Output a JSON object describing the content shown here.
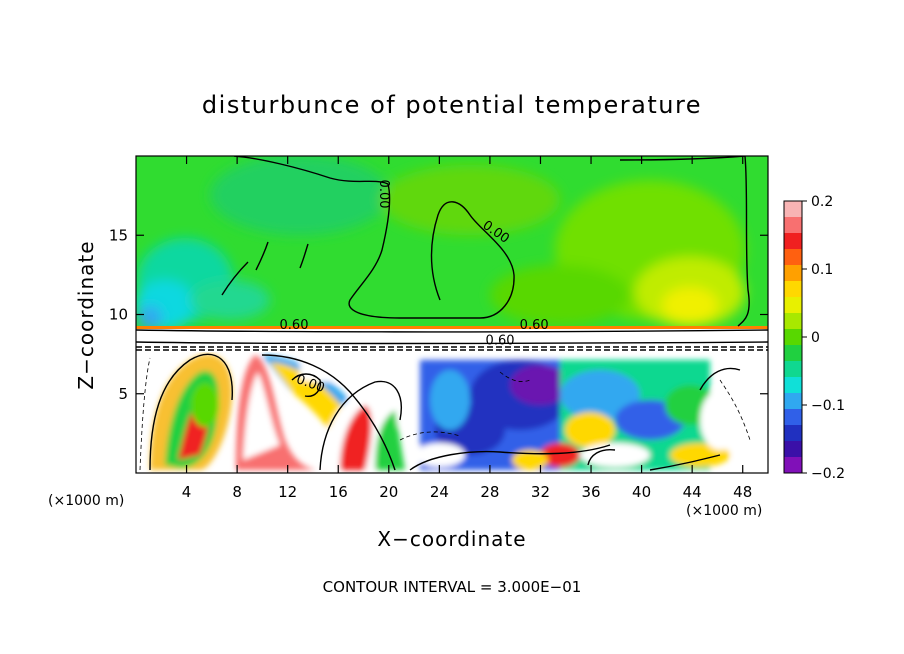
{
  "chart_data": {
    "type": "heatmap",
    "title": "disturbunce of potential temperature",
    "xlabel": "X−coordinate",
    "ylabel": "Z−coordinate",
    "x_unit": "(×1000 m)",
    "y_unit": "(×1000 m)",
    "xlim": [
      0,
      50
    ],
    "ylim": [
      0,
      20
    ],
    "x_ticks": [
      4,
      8,
      12,
      16,
      20,
      24,
      28,
      32,
      36,
      40,
      44,
      48
    ],
    "y_ticks": [
      5,
      10,
      15
    ],
    "x_tick_labels": [
      "4",
      "8",
      "12",
      "16",
      "20",
      "24",
      "28",
      "32",
      "36",
      "40",
      "44",
      "48"
    ],
    "y_tick_labels": [
      "5",
      "10",
      "15"
    ],
    "colorbar": {
      "min": -0.2,
      "max": 0.2,
      "ticks": [
        0.2,
        0.1,
        0,
        -0.1,
        -0.2
      ],
      "tick_labels": [
        "0.2",
        "0.1",
        "0",
        "−0.1",
        "−0.2"
      ],
      "colors": [
        "#f8b4b4",
        "#f87070",
        "#f02020",
        "#ff6010",
        "#ffa000",
        "#ffd800",
        "#e8f000",
        "#a8e800",
        "#58d800",
        "#20d040",
        "#10d890",
        "#10e0d8",
        "#30a8f0",
        "#3060e8",
        "#2030c0",
        "#3a10a8",
        "#8010b8"
      ]
    },
    "contour_labels": [
      {
        "text": "0.00",
        "x": 19.3,
        "z": 17.6,
        "rotate": 90
      },
      {
        "text": "0.00",
        "x": 28.3,
        "z": 15.0,
        "rotate": 35
      },
      {
        "text": "0.60",
        "x": 12.5,
        "z": 9.1,
        "rotate": 0
      },
      {
        "text": "0.60",
        "x": 31.5,
        "z": 9.1,
        "rotate": 0
      },
      {
        "text": "0.60",
        "x": 28.8,
        "z": 8.1,
        "rotate": 0
      },
      {
        "text": "0.00",
        "x": 13.7,
        "z": 5.4,
        "rotate": 20
      }
    ],
    "grid": false,
    "legend": "colorbar-right"
  },
  "footer": "CONTOUR INTERVAL = 3.000E−01"
}
